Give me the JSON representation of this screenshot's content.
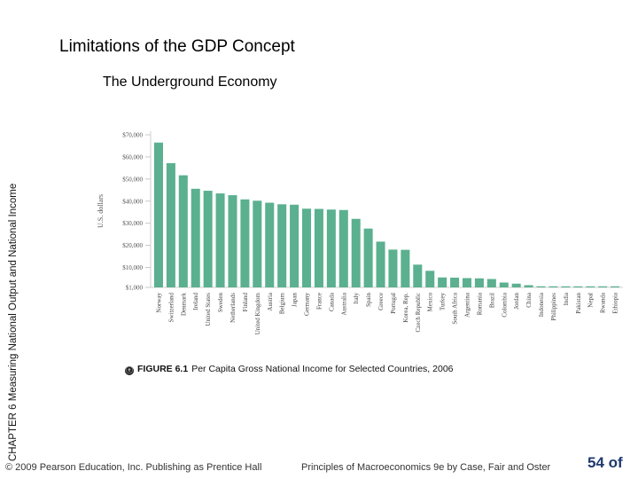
{
  "slide": {
    "title": "Limitations of the GDP Concept",
    "subtitle": "The Underground Economy",
    "side_label": "CHAPTER 6  Measuring National Output and National Income"
  },
  "caption": {
    "icon": "ⓔ",
    "figure_number": "FIGURE 6.1",
    "text": "Per Capita Gross National Income for Selected Countries, 2006"
  },
  "footer": {
    "copyright": "© 2009 Pearson Education, Inc. Publishing as Prentice Hall",
    "book": "Principles of Macroeconomics 9e by Case, Fair and Oster",
    "page": "54 of"
  },
  "colors": {
    "bar": "#5bb08f",
    "axis": "#cfcfcf"
  },
  "chart_data": {
    "type": "bar",
    "title": "Per Capita Gross National Income for Selected Countries, 2006",
    "xlabel": "",
    "ylabel": "U.S. dollars",
    "ylim": [
      1000,
      70000
    ],
    "y_ticks": [
      1000,
      10000,
      20000,
      30000,
      40000,
      50000,
      60000,
      70000
    ],
    "y_tick_labels": [
      "$1,000",
      "$10,000",
      "$20,000",
      "$30,000",
      "$40,000",
      "$50,000",
      "$60,000",
      "$70,000"
    ],
    "categories": [
      "Norway",
      "Switzerland",
      "Denmark",
      "Ireland",
      "United States",
      "Sweden",
      "Netherlands",
      "Finland",
      "United Kingdom",
      "Austria",
      "Belgium",
      "Japan",
      "Germany",
      "France",
      "Canada",
      "Australia",
      "Italy",
      "Spain",
      "Greece",
      "Portugal",
      "Korea, Rep.",
      "Czech Republic",
      "Mexico",
      "Turkey",
      "South Africa",
      "Argentina",
      "Romania",
      "Brazil",
      "Colombia",
      "Jordan",
      "China",
      "Indonesia",
      "Philippines",
      "India",
      "Pakistan",
      "Nepal",
      "Rwanda",
      "Ethiopia"
    ],
    "values": [
      66500,
      57200,
      51700,
      45600,
      44700,
      43500,
      42700,
      40800,
      40200,
      39300,
      38600,
      38400,
      36600,
      36500,
      36200,
      36000,
      32000,
      27600,
      21700,
      18100,
      18000,
      11300,
      8500,
      5500,
      5400,
      5200,
      5100,
      4800,
      3200,
      2700,
      2000,
      1500,
      1400,
      900,
      800,
      300,
      250,
      180
    ]
  }
}
